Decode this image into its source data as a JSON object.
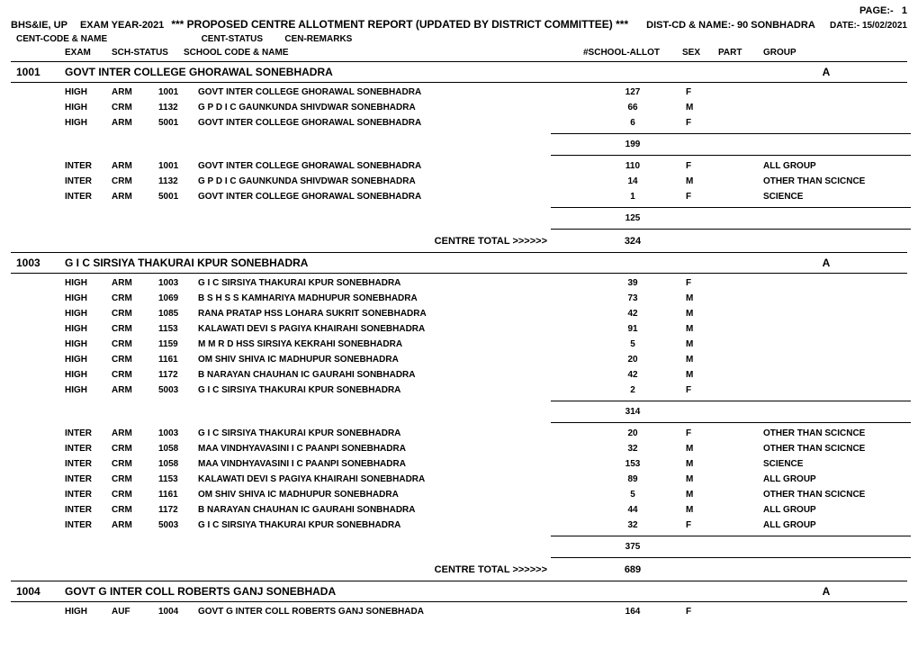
{
  "page_label": "PAGE:-",
  "page_num": "1",
  "org": "BHS&IE, UP",
  "exam_year_label": "EXAM YEAR-2021",
  "title": "***  PROPOSED   CENTRE   ALLOTMENT REPORT  (UPDATED BY DISTRICT COMMITTEE) ***",
  "dist_label": "DIST-CD & NAME:-",
  "dist_val": "90 SONBHADRA",
  "date_label": "DATE:-",
  "date_val": "15/02/2021",
  "h2_centcode": "CENT-CODE & NAME",
  "h2_centstatus": "CENT-STATUS",
  "h2_cenremarks": "CEN-REMARKS",
  "h3_exam": "EXAM",
  "h3_schstatus": "SCH-STATUS",
  "h3_schcode": "SCHOOL CODE & NAME",
  "h3_allot": "#SCHOOL-ALLOT",
  "h3_sex": "SEX",
  "h3_part": "PART",
  "h3_group": "GROUP",
  "centre_total_label": "CENTRE TOTAL >>>>>>",
  "centres": [
    {
      "code": "1001",
      "name": "GOVT INTER COLLEGE GHORAWAL SONEBHADRA",
      "status": "A",
      "blocks": [
        {
          "rows": [
            {
              "exam": "HIGH",
              "schstatus": "ARM",
              "schcode": "1001",
              "schname": "GOVT INTER COLLEGE GHORAWAL SONEBHADRA",
              "allot": "127",
              "sex": "F",
              "group": ""
            },
            {
              "exam": "HIGH",
              "schstatus": "CRM",
              "schcode": "1132",
              "schname": "G P D I C GAUNKUNDA SHIVDWAR SONEBHADRA",
              "allot": "66",
              "sex": "M",
              "group": ""
            },
            {
              "exam": "HIGH",
              "schstatus": "ARM",
              "schcode": "5001",
              "schname": "GOVT INTER COLLEGE GHORAWAL SONEBHADRA",
              "allot": "6",
              "sex": "F",
              "group": ""
            }
          ],
          "subtotal": "199"
        },
        {
          "rows": [
            {
              "exam": "INTER",
              "schstatus": "ARM",
              "schcode": "1001",
              "schname": "GOVT INTER COLLEGE GHORAWAL SONEBHADRA",
              "allot": "110",
              "sex": "F",
              "group": "ALL GROUP"
            },
            {
              "exam": "INTER",
              "schstatus": "CRM",
              "schcode": "1132",
              "schname": "G P D I C GAUNKUNDA SHIVDWAR SONEBHADRA",
              "allot": "14",
              "sex": "M",
              "group": "OTHER THAN SCICNCE"
            },
            {
              "exam": "INTER",
              "schstatus": "ARM",
              "schcode": "5001",
              "schname": "GOVT INTER COLLEGE GHORAWAL SONEBHADRA",
              "allot": "1",
              "sex": "F",
              "group": "SCIENCE"
            }
          ],
          "subtotal": "125"
        }
      ],
      "centre_total": "324"
    },
    {
      "code": "1003",
      "name": "G I C SIRSIYA THAKURAI KPUR SONEBHADRA",
      "status": "A",
      "blocks": [
        {
          "rows": [
            {
              "exam": "HIGH",
              "schstatus": "ARM",
              "schcode": "1003",
              "schname": "G I C SIRSIYA THAKURAI KPUR SONEBHADRA",
              "allot": "39",
              "sex": "F",
              "group": ""
            },
            {
              "exam": "HIGH",
              "schstatus": "CRM",
              "schcode": "1069",
              "schname": "B S H S S KAMHARIYA MADHUPUR SONEBHADRA",
              "allot": "73",
              "sex": "M",
              "group": ""
            },
            {
              "exam": "HIGH",
              "schstatus": "CRM",
              "schcode": "1085",
              "schname": "RANA PRATAP HSS LOHARA SUKRIT SONEBHADRA",
              "allot": "42",
              "sex": "M",
              "group": ""
            },
            {
              "exam": "HIGH",
              "schstatus": "CRM",
              "schcode": "1153",
              "schname": "KALAWATI  DEVI  S PAGIYA KHAIRAHI SONEBHADRA",
              "allot": "91",
              "sex": "M",
              "group": ""
            },
            {
              "exam": "HIGH",
              "schstatus": "CRM",
              "schcode": "1159",
              "schname": "M M R D HSS SIRSIYA KEKRAHI SONEBHADRA",
              "allot": "5",
              "sex": "M",
              "group": ""
            },
            {
              "exam": "HIGH",
              "schstatus": "CRM",
              "schcode": "1161",
              "schname": "OM SHIV SHIVA IC MADHUPUR SONEBHADRA",
              "allot": "20",
              "sex": "M",
              "group": ""
            },
            {
              "exam": "HIGH",
              "schstatus": "CRM",
              "schcode": "1172",
              "schname": "B NARAYAN CHAUHAN IC GAURAHI SONBHADRA",
              "allot": "42",
              "sex": "M",
              "group": ""
            },
            {
              "exam": "HIGH",
              "schstatus": "ARM",
              "schcode": "5003",
              "schname": "G I C SIRSIYA THAKURAI KPUR SONEBHADRA",
              "allot": "2",
              "sex": "F",
              "group": ""
            }
          ],
          "subtotal": "314"
        },
        {
          "rows": [
            {
              "exam": "INTER",
              "schstatus": "ARM",
              "schcode": "1003",
              "schname": "G I C SIRSIYA THAKURAI KPUR SONEBHADRA",
              "allot": "20",
              "sex": "F",
              "group": "OTHER THAN SCICNCE"
            },
            {
              "exam": "INTER",
              "schstatus": "CRM",
              "schcode": "1058",
              "schname": "MAA VINDHYAVASINI I C PAANPI SONEBHADRA",
              "allot": "32",
              "sex": "M",
              "group": "OTHER THAN SCICNCE"
            },
            {
              "exam": "INTER",
              "schstatus": "CRM",
              "schcode": "1058",
              "schname": "MAA VINDHYAVASINI I C PAANPI SONEBHADRA",
              "allot": "153",
              "sex": "M",
              "group": "SCIENCE"
            },
            {
              "exam": "INTER",
              "schstatus": "CRM",
              "schcode": "1153",
              "schname": "KALAWATI  DEVI  S PAGIYA KHAIRAHI SONEBHADRA",
              "allot": "89",
              "sex": "M",
              "group": "ALL GROUP"
            },
            {
              "exam": "INTER",
              "schstatus": "CRM",
              "schcode": "1161",
              "schname": "OM SHIV SHIVA IC MADHUPUR SONEBHADRA",
              "allot": "5",
              "sex": "M",
              "group": "OTHER THAN SCICNCE"
            },
            {
              "exam": "INTER",
              "schstatus": "CRM",
              "schcode": "1172",
              "schname": "B NARAYAN CHAUHAN IC GAURAHI SONBHADRA",
              "allot": "44",
              "sex": "M",
              "group": "ALL GROUP"
            },
            {
              "exam": "INTER",
              "schstatus": "ARM",
              "schcode": "5003",
              "schname": "G I C SIRSIYA THAKURAI KPUR SONEBHADRA",
              "allot": "32",
              "sex": "F",
              "group": "ALL GROUP"
            }
          ],
          "subtotal": "375"
        }
      ],
      "centre_total": "689"
    },
    {
      "code": "1004",
      "name": "GOVT G INTER COLL ROBERTS GANJ SONEBHADA",
      "status": "A",
      "blocks": [
        {
          "rows": [
            {
              "exam": "HIGH",
              "schstatus": "AUF",
              "schcode": "1004",
              "schname": "GOVT G INTER COLL ROBERTS GANJ SONEBHADA",
              "allot": "164",
              "sex": "F",
              "group": ""
            }
          ],
          "subtotal": null
        }
      ],
      "centre_total": null
    }
  ]
}
